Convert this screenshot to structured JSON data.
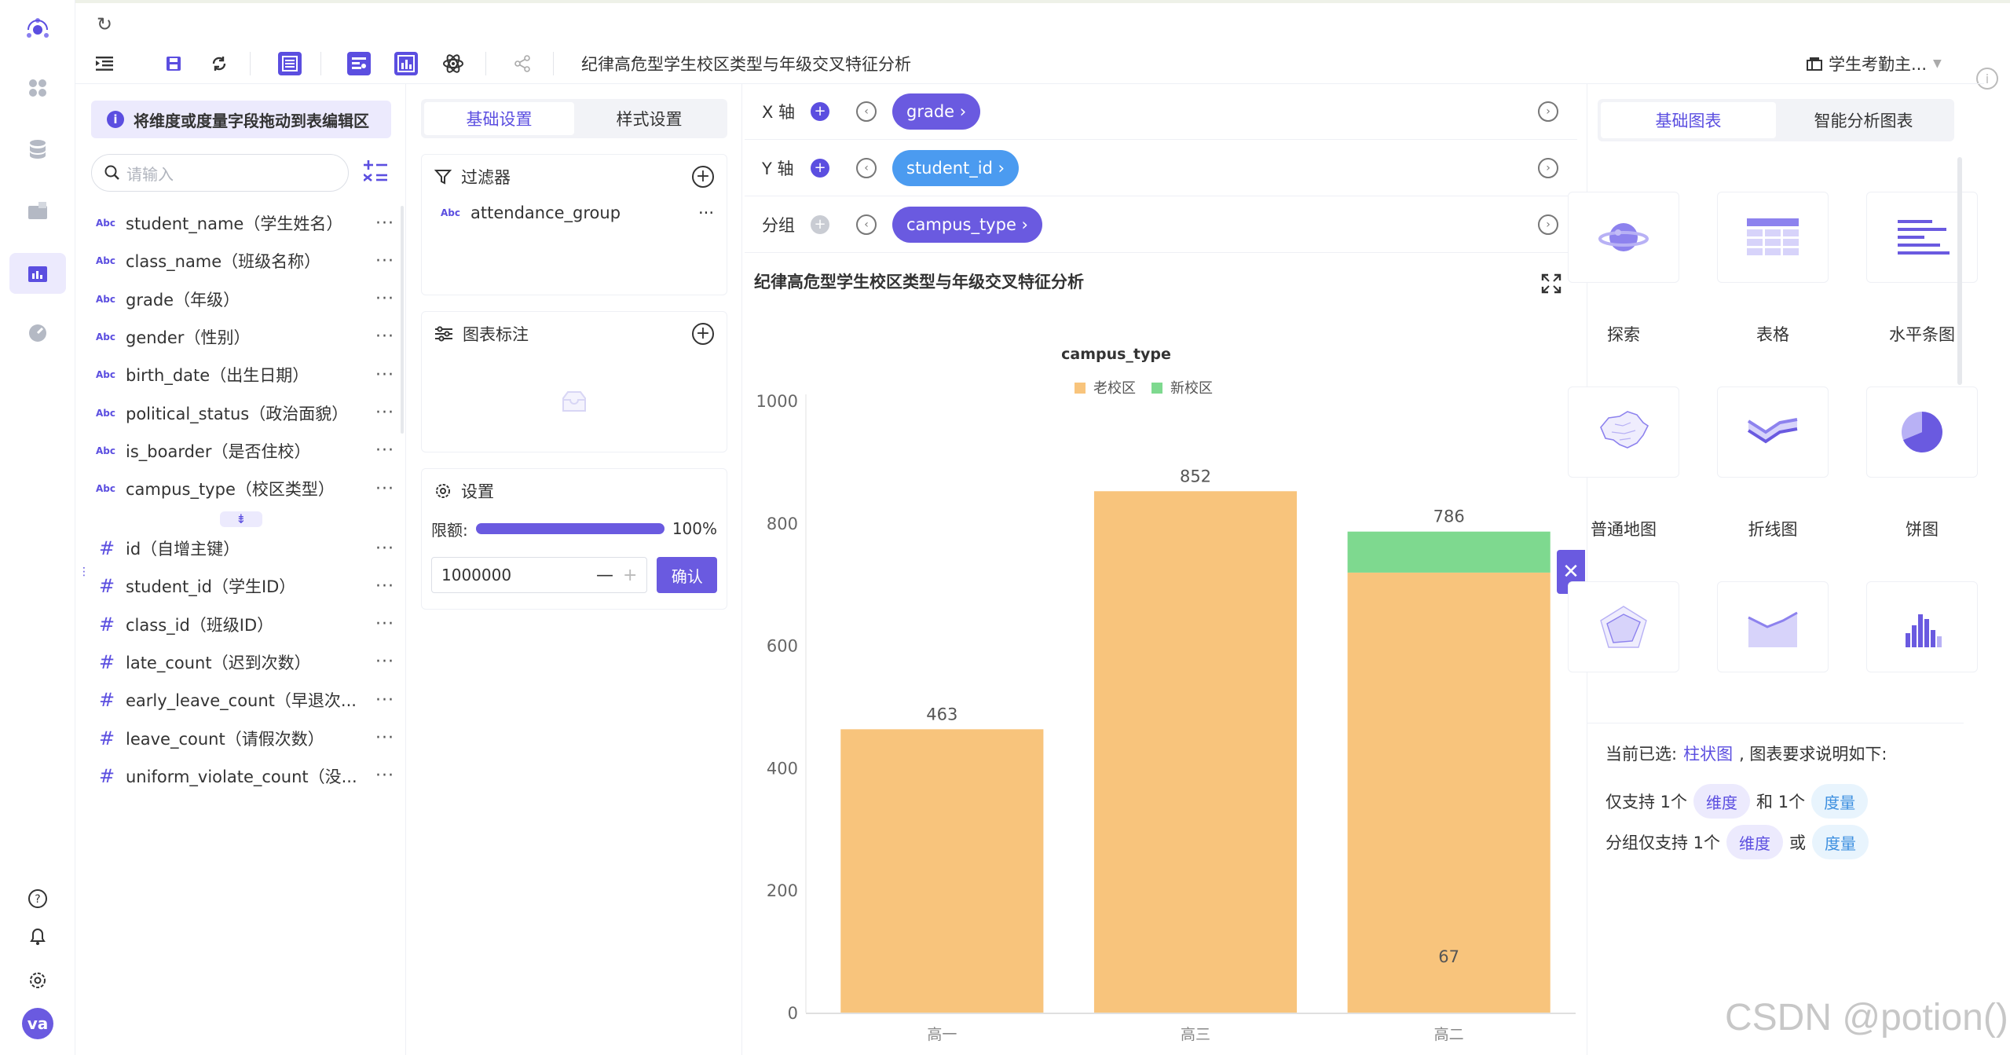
{
  "toolbar": {
    "title": "纪律高危型学生校区类型与年级交叉特征分析",
    "dataset": "学生考勤主..."
  },
  "fields_panel": {
    "hint": "将维度或度量字段拖动到表编辑区",
    "search_placeholder": "请输入",
    "dimensions": [
      {
        "type": "Abc",
        "label": "student_name（学生姓名）"
      },
      {
        "type": "Abc",
        "label": "class_name（班级名称）"
      },
      {
        "type": "Abc",
        "label": "grade（年级）"
      },
      {
        "type": "Abc",
        "label": "gender（性别）"
      },
      {
        "type": "Abc",
        "label": "birth_date（出生日期）"
      },
      {
        "type": "Abc",
        "label": "political_status（政治面貌）"
      },
      {
        "type": "Abc",
        "label": "is_boarder（是否住校）"
      },
      {
        "type": "Abc",
        "label": "campus_type（校区类型）"
      }
    ],
    "measures": [
      {
        "type": "#",
        "label": "id（自增主键）"
      },
      {
        "type": "#",
        "label": "student_id（学生ID）"
      },
      {
        "type": "#",
        "label": "class_id（班级ID）"
      },
      {
        "type": "#",
        "label": "late_count（迟到次数）"
      },
      {
        "type": "#",
        "label": "early_leave_count（早退次..."
      },
      {
        "type": "#",
        "label": "leave_count（请假次数）"
      },
      {
        "type": "#",
        "label": "uniform_violate_count（没..."
      }
    ],
    "more": "···"
  },
  "settings": {
    "tab_basic": "基础设置",
    "tab_style": "样式设置",
    "filter_title": "过滤器",
    "filter_item_type": "Abc",
    "filter_item": "attendance_group",
    "annotation_title": "图表标注",
    "settings_title": "设置",
    "limit_label": "限额:",
    "limit_percent": "100%",
    "limit_fill": 1.0,
    "limit_value": "1000000",
    "confirm": "确认"
  },
  "shelves": {
    "x_label": "X 轴",
    "x_field": "grade",
    "y_label": "Y 轴",
    "y_field": "student_id",
    "group_label": "分组",
    "group_field": "campus_type"
  },
  "chart_title": "纪律高危型学生校区类型与年级交叉特征分析",
  "chart_data": {
    "type": "bar",
    "stacked": true,
    "legend_title": "campus_type",
    "categories": [
      "高一",
      "高三",
      "高二"
    ],
    "series": [
      {
        "name": "老校区",
        "color": "#f8c47c",
        "values": [
          463,
          852,
          719
        ]
      },
      {
        "name": "新校区",
        "color": "#7ed98f",
        "values": [
          0,
          0,
          67
        ]
      }
    ],
    "labels": [
      {
        "category": "高一",
        "text": "463",
        "value": 463
      },
      {
        "category": "高三",
        "text": "852",
        "value": 852
      },
      {
        "category": "高二",
        "text": "786",
        "value": 786
      },
      {
        "category": "高二",
        "text": "67",
        "value": 67
      }
    ],
    "yticks": [
      0,
      200,
      400,
      600,
      800,
      1000
    ],
    "ylim": [
      0,
      1000
    ],
    "grid": false,
    "legend_position": "top"
  },
  "chart_types": {
    "tab_basic": "基础图表",
    "tab_smart": "智能分析图表",
    "items": [
      "探索",
      "表格",
      "水平条图",
      "普通地图",
      "折线图",
      "饼图",
      "雷达图",
      "面积图",
      "直方图"
    ]
  },
  "requirements": {
    "selected_prefix": "当前已选:",
    "selected_chart": "柱状图",
    "selected_suffix": ", 图表要求说明如下:",
    "line1_a": "仅支持 1个",
    "line1_dim": "维度",
    "line1_b": "和 1个",
    "line1_mea": "度量",
    "line2_a": "分组仅支持 1个",
    "line2_dim": "维度",
    "line2_b": "或",
    "line2_mea": "度量"
  },
  "user": {
    "avatar": "va"
  },
  "watermark": "CSDN @potion()",
  "colors": {
    "accent": "#6a5ae0",
    "pill_violet": "#6a5ae0",
    "pill_blue": "#4b9bf0"
  }
}
